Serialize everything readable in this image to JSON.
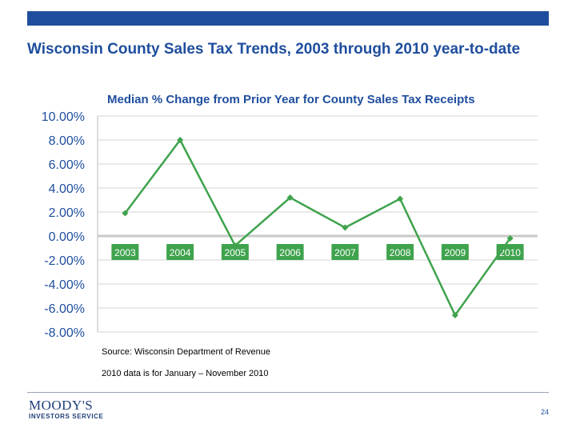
{
  "slide": {
    "title": "Wisconsin County Sales Tax Trends, 2003 through 2010 year-to-date",
    "source": "Source: Wisconsin Department of Revenue",
    "note": "2010 data is for January – November 2010",
    "page_number": "24",
    "logo": {
      "main": "MOODY'S",
      "sub": "INVESTORS SERVICE"
    }
  },
  "colors": {
    "brand": "#1f4e9e",
    "series": "#3fa34d",
    "tick_label": "#1f4e9e"
  },
  "chart_data": {
    "type": "line",
    "title": "Median % Change from Prior Year for County Sales Tax Receipts",
    "categories": [
      "2003",
      "2004",
      "2005",
      "2006",
      "2007",
      "2008",
      "2009",
      "2010"
    ],
    "series": [
      {
        "values": [
          1.9,
          8.0,
          -0.8,
          3.2,
          0.7,
          3.1,
          -6.6,
          -0.2
        ]
      }
    ],
    "ylim": [
      -8,
      10
    ],
    "yticks": [
      "10.00%",
      "8.00%",
      "6.00%",
      "4.00%",
      "2.00%",
      "0.00%",
      "-2.00%",
      "-4.00%",
      "-6.00%",
      "-8.00%"
    ],
    "xlabel": "",
    "ylabel": "",
    "grid": true,
    "legend": "none",
    "category_label_style": "green boxes on the zero line"
  }
}
